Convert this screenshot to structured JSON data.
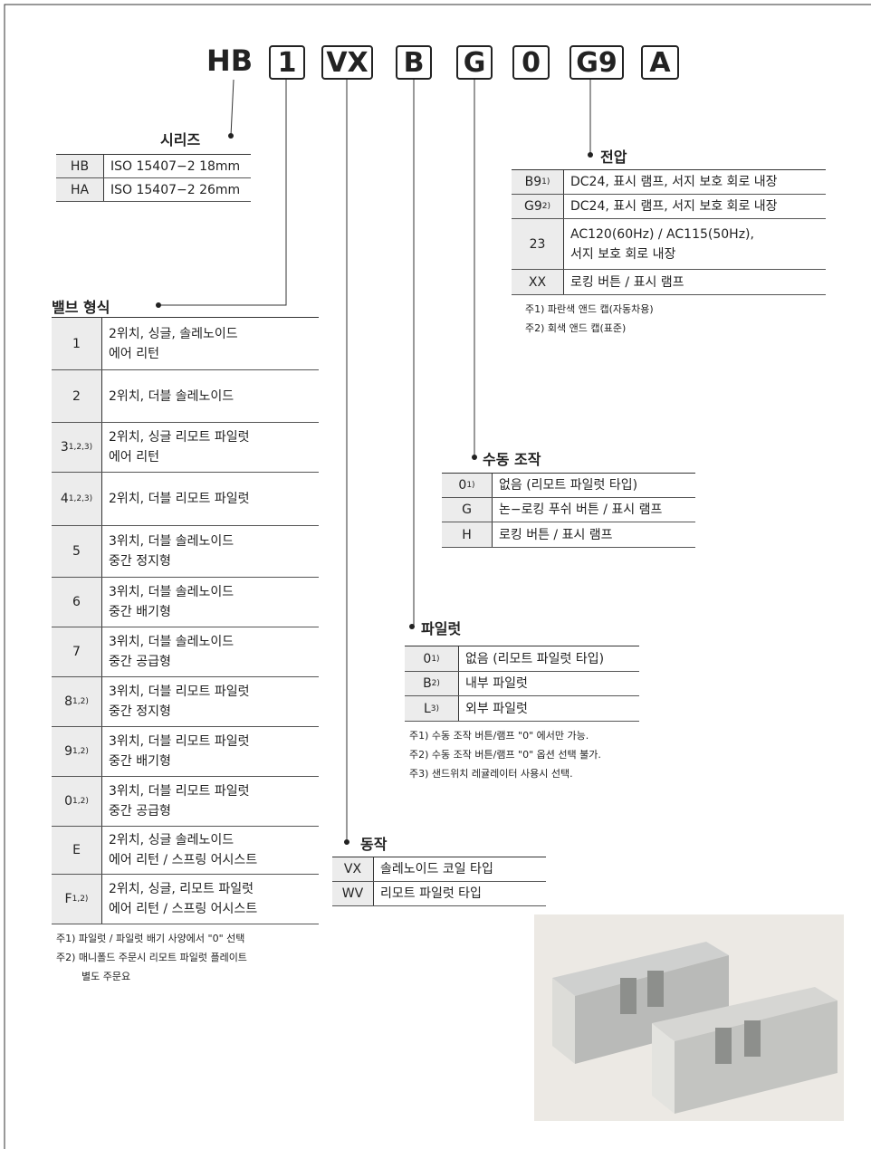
{
  "code": {
    "prefix": "HB",
    "boxes": [
      "1",
      "VX",
      "B",
      "G",
      "0",
      "G9",
      "A"
    ]
  },
  "series": {
    "title": "시리즈",
    "rows": [
      {
        "code": "HB",
        "lines": [
          "ISO 15407−2 18mm"
        ]
      },
      {
        "code": "HA",
        "lines": [
          "ISO 15407−2 26mm"
        ]
      }
    ]
  },
  "valve_type": {
    "title": "밸브 형식",
    "rows": [
      {
        "code": "1",
        "lines": [
          "2위치, 싱글, 솔레노이드",
          "에어 리턴"
        ]
      },
      {
        "code": "2",
        "lines": [
          "2위치, 더블 솔레노이드"
        ]
      },
      {
        "code": "3",
        "sup": "1,2,3)",
        "lines": [
          "2위치, 싱글 리모트 파일럿",
          "에어 리턴"
        ]
      },
      {
        "code": "4",
        "sup": "1,2,3)",
        "lines": [
          "2위치, 더블 리모트 파일럿"
        ]
      },
      {
        "code": "5",
        "lines": [
          "3위치, 더블 솔레노이드",
          "중간 정지형"
        ]
      },
      {
        "code": "6",
        "lines": [
          "3위치, 더블 솔레노이드",
          "중간 배기형"
        ]
      },
      {
        "code": "7",
        "lines": [
          "3위치, 더블 솔레노이드",
          "중간 공급형"
        ]
      },
      {
        "code": "8",
        "sup": "1,2)",
        "lines": [
          "3위치, 더블 리모트 파일럿",
          "중간 정지형"
        ]
      },
      {
        "code": "9",
        "sup": "1,2)",
        "lines": [
          "3위치, 더블 리모트 파일럿",
          "중간 배기형"
        ]
      },
      {
        "code": "0",
        "sup": "1,2)",
        "lines": [
          "3위치, 더블 리모트 파일럿",
          "중간 공급형"
        ]
      },
      {
        "code": "E",
        "lines": [
          "2위치, 싱글 솔레노이드",
          "에어 리턴 / 스프링 어시스트"
        ]
      },
      {
        "code": "F",
        "sup": "1,2)",
        "lines": [
          "2위치, 싱글, 리모트 파일럿",
          "에어 리턴 / 스프링 어시스트"
        ]
      }
    ],
    "notes": [
      "주1) 파일럿 / 파일럿 배기 사양에서  \"0\" 선택",
      "주2) 매니폴드 주문시 리모트 파일럿 플레이트",
      "별도 주문요"
    ]
  },
  "operation": {
    "title": "동작",
    "rows": [
      {
        "code": "VX",
        "lines": [
          "솔레노이드 코일 타입"
        ]
      },
      {
        "code": "WV",
        "lines": [
          "리모트 파일럿 타입"
        ]
      }
    ]
  },
  "pilot": {
    "title": "파일럿",
    "rows": [
      {
        "code": "0",
        "sup": "1)",
        "lines": [
          "없음 (리모트 파일럿 타입)"
        ]
      },
      {
        "code": "B",
        "sup": "2)",
        "lines": [
          "내부 파일럿"
        ]
      },
      {
        "code": "L",
        "sup": "3)",
        "lines": [
          "외부 파일럿"
        ]
      }
    ],
    "notes": [
      "주1) 수동 조작 버튼/램프  \"0\" 에서만 가능.",
      "주2) 수동 조작 버튼/램프  \"0\" 옵션 선택 불가.",
      "주3) 샌드위치 레귤레이터 사용시 선택."
    ]
  },
  "manual_operation": {
    "title": "수동 조작",
    "rows": [
      {
        "code": "0",
        "sup": "1)",
        "lines": [
          "없음 (리모트 파일럿 타입)"
        ]
      },
      {
        "code": "G",
        "lines": [
          "논−로킹 푸쉬 버튼 / 표시 램프"
        ]
      },
      {
        "code": "H",
        "lines": [
          "로킹 버튼 / 표시 램프"
        ]
      }
    ]
  },
  "voltage": {
    "title": "전압",
    "rows": [
      {
        "code": "B9",
        "sup": "1)",
        "lines": [
          "DC24, 표시 램프, 서지 보호 회로 내장"
        ]
      },
      {
        "code": "G9",
        "sup": "2)",
        "lines": [
          "DC24, 표시 램프, 서지 보호 회로 내장"
        ]
      },
      {
        "code": "23",
        "lines": [
          "AC120(60Hz) / AC115(50Hz),",
          "서지 보호 회로 내장"
        ]
      },
      {
        "code": "XX",
        "lines": [
          "로킹 버튼 / 표시 램프"
        ]
      }
    ],
    "notes": [
      "주1) 파란색 앤드 캡(자동차용)",
      "주2) 회색 앤드 캡(표준)"
    ]
  }
}
